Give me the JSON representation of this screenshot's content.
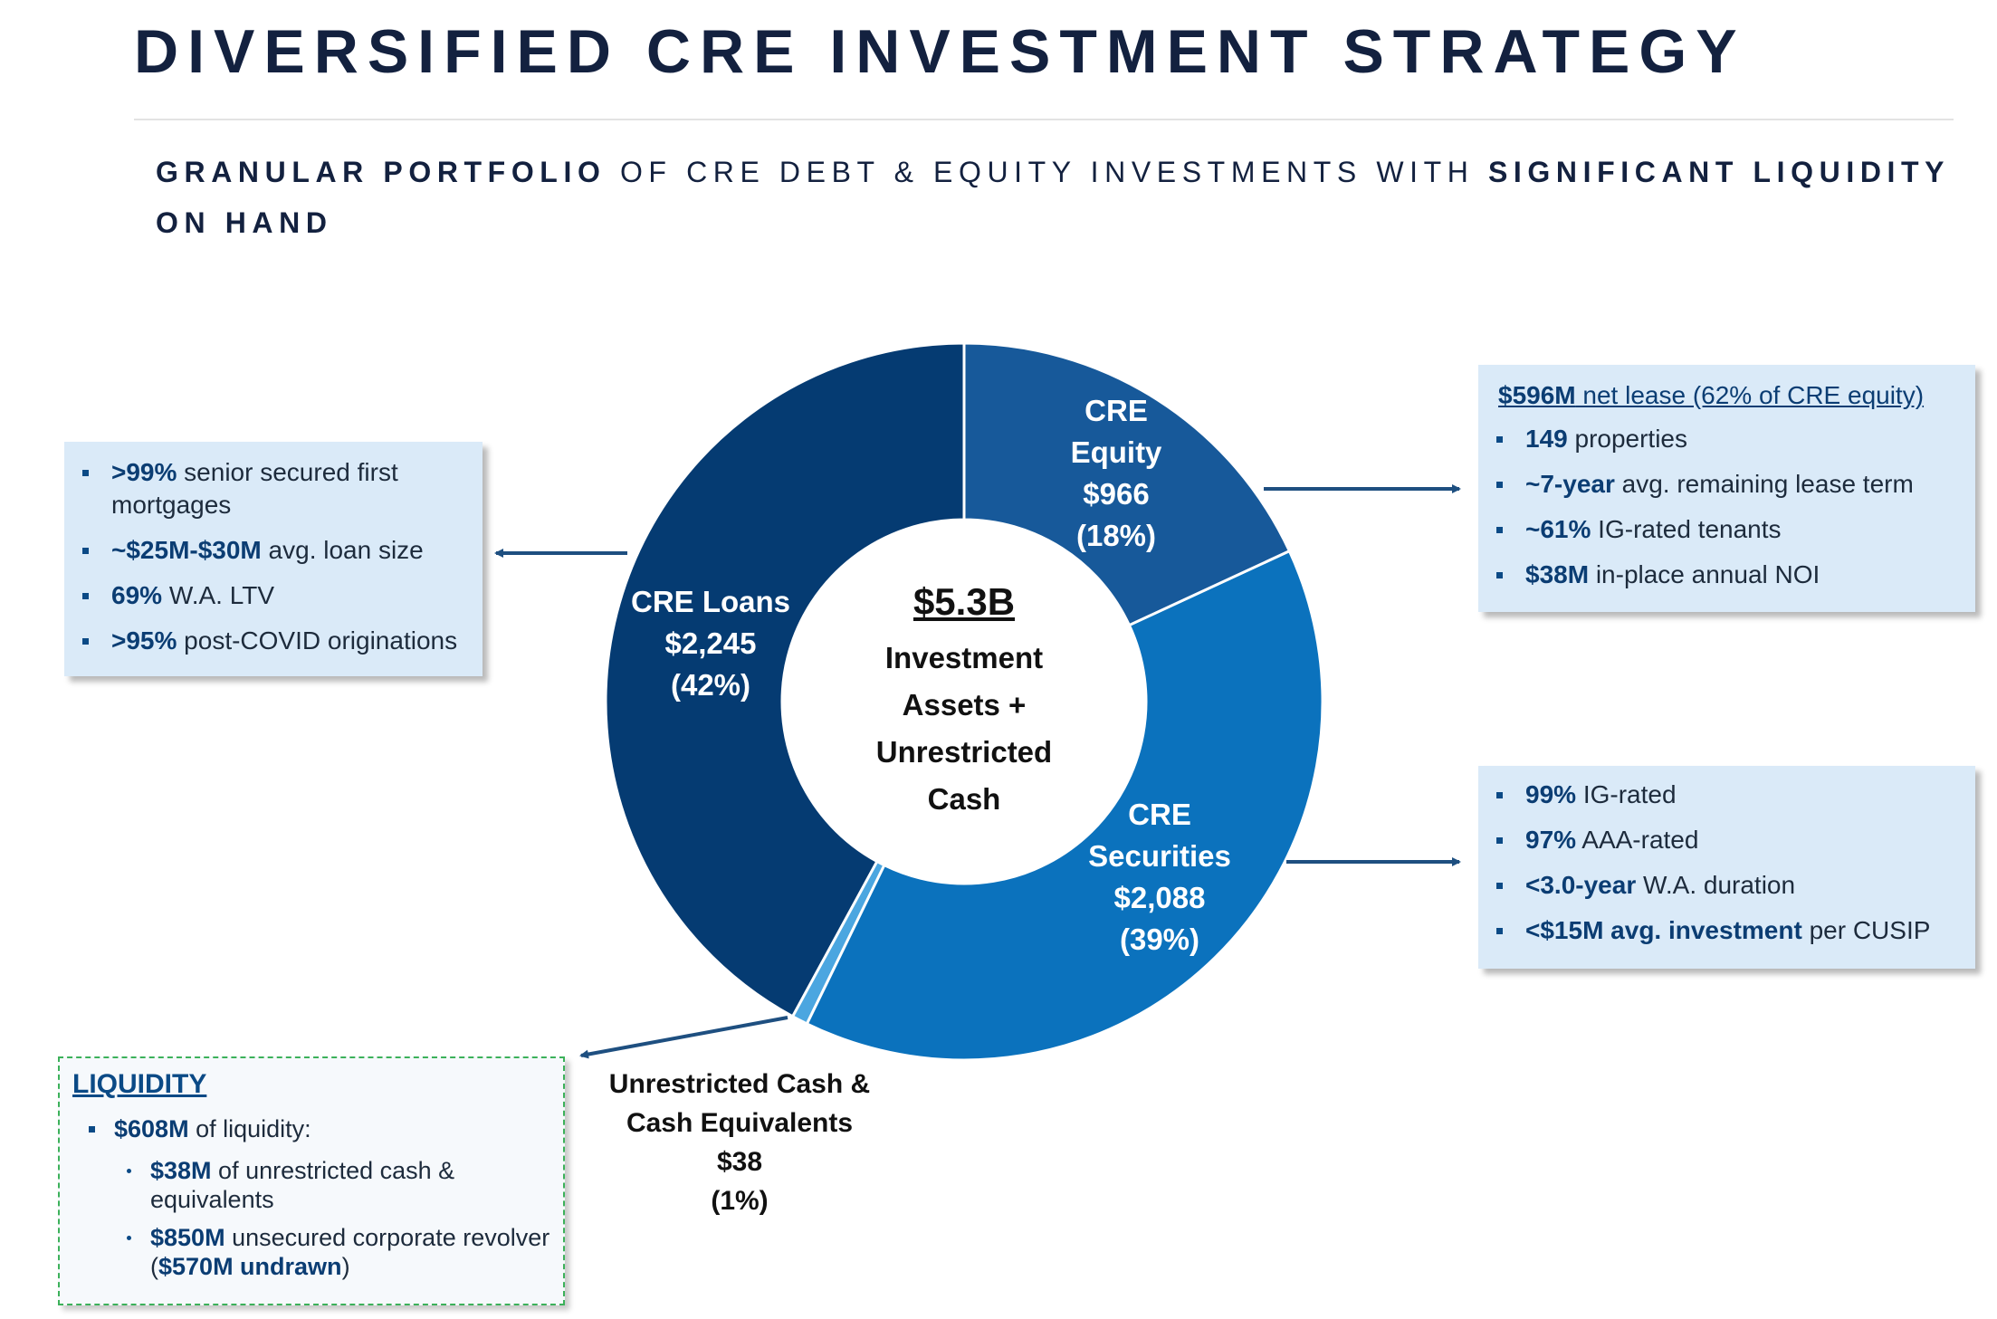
{
  "header": {
    "title": "DIVERSIFIED CRE INVESTMENT STRATEGY",
    "subtitle": [
      {
        "text": "GRANULAR PORTFOLIO",
        "bold": true
      },
      {
        "text": " OF CRE DEBT & EQUITY INVESTMENTS WITH "
      },
      {
        "text": "SIGNIFICANT LIQUIDITY ON HAND",
        "bold": true
      }
    ]
  },
  "chart_data": {
    "type": "donut",
    "categories": [
      "CRE Equity",
      "CRE Securities",
      "Unrestricted Cash & Cash Equivalents",
      "CRE Loans"
    ],
    "values": [
      966,
      2088,
      38,
      2245
    ],
    "value_labels": [
      "$966",
      "$2,088",
      "$38",
      "$2,245"
    ],
    "percent_labels": [
      "(18%)",
      "(39%)",
      "(1%)",
      "(42%)"
    ],
    "colors": [
      "#17599a",
      "#0b72bd",
      "#4ba6e0",
      "#053b72"
    ],
    "center_value_label": "$5.3B",
    "center_label": "Investment Assets + Unrestricted Cash"
  },
  "boxes": {
    "loans": {
      "items": [
        [
          {
            "text": ">99%",
            "bold": true
          },
          {
            "text": " senior secured first mortgages"
          }
        ],
        [
          {
            "text": "~$25M-$30M",
            "bold": true
          },
          {
            "text": " avg. loan size"
          }
        ],
        [
          {
            "text": "69%",
            "bold": true
          },
          {
            "text": " W.A. LTV"
          }
        ],
        [
          {
            "text": ">95%",
            "bold": true
          },
          {
            "text": " post-COVID originations"
          }
        ]
      ]
    },
    "equity": {
      "heading": [
        {
          "text": "$596M",
          "bold": true
        },
        {
          "text": " net lease (62% of CRE equity)"
        }
      ],
      "items": [
        [
          {
            "text": "149",
            "bold": true
          },
          {
            "text": " properties"
          }
        ],
        [
          {
            "text": "~7-year",
            "bold": true
          },
          {
            "text": " avg. remaining lease term"
          }
        ],
        [
          {
            "text": "~61%",
            "bold": true
          },
          {
            "text": " IG-rated tenants"
          }
        ],
        [
          {
            "text": "$38M",
            "bold": true
          },
          {
            "text": " in-place annual NOI"
          }
        ]
      ]
    },
    "securities": {
      "items": [
        [
          {
            "text": "99%",
            "bold": true
          },
          {
            "text": " IG-rated"
          }
        ],
        [
          {
            "text": "97%",
            "bold": true
          },
          {
            "text": " AAA-rated"
          }
        ],
        [
          {
            "text": "<3.0-year",
            "bold": true
          },
          {
            "text": " W.A. duration"
          }
        ],
        [
          {
            "text": "<$15M avg. investment",
            "bold": true
          },
          {
            "text": " per CUSIP"
          }
        ]
      ]
    },
    "liquidity": {
      "title": "LIQUIDITY",
      "items": [
        [
          {
            "text": "$608M",
            "bold": true
          },
          {
            "text": " of liquidity:"
          }
        ]
      ],
      "subitems": [
        [
          {
            "text": "$38M",
            "bold": true
          },
          {
            "text": " of unrestricted cash & equivalents"
          }
        ],
        [
          {
            "text": "$850M",
            "bold": true
          },
          {
            "text": " unsecured corporate revolver ("
          },
          {
            "text": "$570M undrawn",
            "bold": true
          },
          {
            "text": ")"
          }
        ]
      ]
    }
  }
}
